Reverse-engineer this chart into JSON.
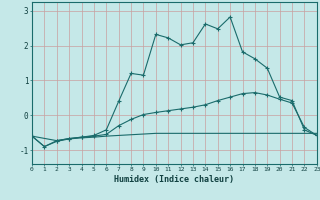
{
  "xlabel": "Humidex (Indice chaleur)",
  "bg_color": "#c5e8e8",
  "line_color": "#1a6b6b",
  "grid_color_v": "#c8a0a0",
  "grid_color_h": "#c8a0a0",
  "xlim": [
    0,
    23
  ],
  "ylim": [
    -1.4,
    3.25
  ],
  "xticks": [
    0,
    1,
    2,
    3,
    4,
    5,
    6,
    7,
    8,
    9,
    10,
    11,
    12,
    13,
    14,
    15,
    16,
    17,
    18,
    19,
    20,
    21,
    22,
    23
  ],
  "yticks": [
    -1,
    0,
    1,
    2,
    3
  ],
  "line1_x": [
    0,
    1,
    2,
    3,
    4,
    5,
    6,
    7,
    8,
    9,
    10,
    11,
    12,
    13,
    14,
    15,
    16,
    17,
    18,
    19,
    20,
    21,
    22,
    23
  ],
  "line1_y": [
    -0.6,
    -0.9,
    -0.75,
    -0.68,
    -0.65,
    -0.63,
    -0.6,
    -0.58,
    -0.56,
    -0.54,
    -0.52,
    -0.52,
    -0.52,
    -0.52,
    -0.52,
    -0.52,
    -0.52,
    -0.52,
    -0.52,
    -0.52,
    -0.52,
    -0.52,
    -0.52,
    -0.52
  ],
  "line2_x": [
    0,
    1,
    2,
    3,
    4,
    5,
    6,
    7,
    8,
    9,
    10,
    11,
    12,
    13,
    14,
    15,
    16,
    17,
    18,
    19,
    20,
    21,
    22,
    23
  ],
  "line2_y": [
    -0.6,
    -0.9,
    -0.73,
    -0.67,
    -0.63,
    -0.6,
    -0.55,
    -0.3,
    -0.12,
    0.02,
    0.08,
    0.13,
    0.18,
    0.23,
    0.3,
    0.42,
    0.52,
    0.62,
    0.65,
    0.58,
    0.46,
    0.35,
    -0.35,
    -0.58
  ],
  "line3_x": [
    0,
    2,
    3,
    4,
    5,
    6,
    7,
    8,
    9,
    10,
    11,
    12,
    13,
    14,
    15,
    16,
    17,
    18,
    19,
    20,
    21,
    22,
    23
  ],
  "line3_y": [
    -0.6,
    -0.73,
    -0.67,
    -0.63,
    -0.58,
    -0.42,
    0.4,
    1.2,
    1.15,
    2.32,
    2.22,
    2.02,
    2.08,
    2.62,
    2.48,
    2.82,
    1.82,
    1.62,
    1.35,
    0.52,
    0.42,
    -0.42,
    -0.58
  ]
}
